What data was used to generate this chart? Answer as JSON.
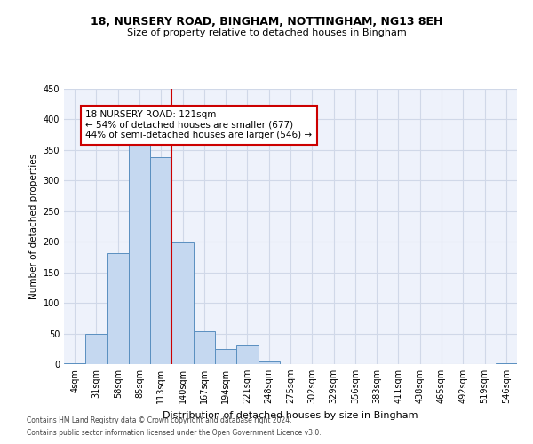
{
  "title_line1": "18, NURSERY ROAD, BINGHAM, NOTTINGHAM, NG13 8EH",
  "title_line2": "Size of property relative to detached houses in Bingham",
  "xlabel": "Distribution of detached houses by size in Bingham",
  "ylabel": "Number of detached properties",
  "bar_color": "#c5d8f0",
  "bar_edge_color": "#5a8fc0",
  "categories": [
    "4sqm",
    "31sqm",
    "58sqm",
    "85sqm",
    "113sqm",
    "140sqm",
    "167sqm",
    "194sqm",
    "221sqm",
    "248sqm",
    "275sqm",
    "302sqm",
    "329sqm",
    "356sqm",
    "383sqm",
    "411sqm",
    "438sqm",
    "465sqm",
    "492sqm",
    "519sqm",
    "546sqm"
  ],
  "values": [
    1,
    49,
    181,
    365,
    338,
    199,
    54,
    25,
    31,
    5,
    0,
    0,
    0,
    0,
    0,
    0,
    0,
    0,
    0,
    0,
    1
  ],
  "vline_x_index": 4.5,
  "vline_color": "#cc0000",
  "annotation_text": "18 NURSERY ROAD: 121sqm\n← 54% of detached houses are smaller (677)\n44% of semi-detached houses are larger (546) →",
  "ylim": [
    0,
    450
  ],
  "yticks": [
    0,
    50,
    100,
    150,
    200,
    250,
    300,
    350,
    400,
    450
  ],
  "grid_color": "#d0d8e8",
  "bg_color": "#eef2fb",
  "title_fontsize": 9,
  "subtitle_fontsize": 8,
  "footer_line1": "Contains HM Land Registry data © Crown copyright and database right 2024.",
  "footer_line2": "Contains public sector information licensed under the Open Government Licence v3.0."
}
